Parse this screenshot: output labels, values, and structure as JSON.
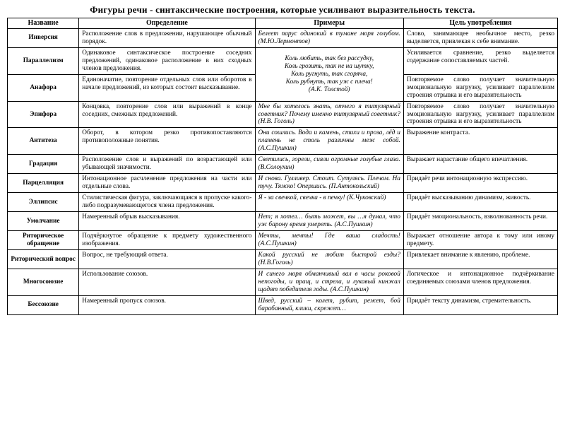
{
  "title": "Фигуры речи - синтаксические построения, которые усиливают выразительность текста.",
  "columns": [
    "Название",
    "Определение",
    "Примеры",
    "Цель употребления"
  ],
  "styling": {
    "page_bg": "#ffffff",
    "text_color": "#000000",
    "border_color": "#000000",
    "title_fontsize_pt": 13,
    "th_fontsize_pt": 10,
    "td_fontsize_pt": 9.3,
    "font_family": "Times New Roman",
    "col_widths_pct": [
      13,
      32,
      27,
      28
    ],
    "example_font_style": "italic",
    "name_font_weight": "bold",
    "rowspans": {
      "1-2": "example"
    }
  },
  "rows": [
    {
      "name": "Инверсия",
      "def": "Расположение слов в предложении, нарушающее обычный порядок.",
      "ex": "Белеет парус одинокий в тумане моря голубом. (М.Ю.Лермонтов)",
      "pur": "Слово, занимающее необычное место, резко выделяется, привлекая к себе внимание."
    },
    {
      "name": "Параллелизм",
      "def": "Одинаковое синтаксическое построение соседних предложений, одинаковое расположение в них сходных членов предложения.",
      "ex": "Коль любить, так без рассудку,\nКоль грозить, так не на шутку,\nКоль ругнуть, так сгоряча,\nКоль рубнуть, так уж с плеча!\n(А.К. Толстой)",
      "pur": "Усиливается сравнение, резко выделяется содержание сопоставляемых частей.",
      "share_example_with_next": true
    },
    {
      "name": "Анафора",
      "def": "Единоначатие, повторение отдельных слов или оборотов в начале предложений, из которых состоит высказывание.",
      "pur": "Повторяемое слово получает значительную эмоциональную нагрузку, усиливает параллелизм строения отрывка и его выразительность"
    },
    {
      "name": "Эпифора",
      "def": "Концовка, повторение слов или выражений в конце соседних, смежных предложений.",
      "ex": "Мне бы хотелось знать, отчего я титулярный советник? Почему именно титулярный советник? (Н.В. Гоголь)",
      "pur": "Повторяемое слово получает значительную эмоциональную нагрузку, усиливает параллелизм строения отрывка и его выразительность"
    },
    {
      "name": "Антитеза",
      "def": "Оборот, в котором резко противопоставляются противоположные понятия.",
      "ex": "Они сошлись. Вода и камень, стихи и проза, лёд и пламень не столь различны меж собой. (А.С.Пушкин)",
      "pur": "Выражение контраста."
    },
    {
      "name": "Градация",
      "def": "Расположение слов и выражений по возрастающей или убывающей значимости.",
      "ex": "Светились, горели, сияли огромные голубые глаза. (В.Солоухин)",
      "pur": "Выражает нарастание общего впечатления."
    },
    {
      "name": "Парцелляция",
      "def": "Интонационное расчленение предложения на части или отдельные слова.",
      "ex": "И снова. Гулливер. Стоит. Сутулясь. Плечом. На тучу. Тяжко! Опершись. (П.Антокольский)",
      "pur": "Придаёт речи интонационную экспрессию."
    },
    {
      "name": "Эллипсис",
      "def": "Стилистическая фигура, заключающаяся в пропуске какого-либо подразумевающегося члена предложения.",
      "ex": "Я - за свечкой, свечка - в печку! (К.Чуковский)",
      "pur": "Придаёт высказыванию динамизм, живость."
    },
    {
      "name": "Умолчание",
      "def": "Намеренный обрыв высказывания.",
      "ex": "Нет; я хотел… быть может, вы …я думал, что уж барону время умереть. (А.С.Пушкин)",
      "pur": "Придаёт эмоциональность, взволнованность речи."
    },
    {
      "name": "Риторическое обращение",
      "def": "Подчёркнутое обращение к предмету художественного изображения.",
      "ex": "Мечты, мечты! Где ваша сладость! (А.С.Пушкин)",
      "pur": "Выражает отношение автора к тому или иному предмету."
    },
    {
      "name": "Риторический вопрос",
      "def": "Вопрос, не требующий ответа.",
      "ex": "Какой русский не любит быстрой езды? (Н.В.Гоголь)",
      "pur": "Привлекает внимание к явлению, проблеме."
    },
    {
      "name": "Многосоюзие",
      "def": "Использование союзов.",
      "ex": "И синего моря обманчивый вал в часы роковой непогоды, и пращ, и стрела, и лукавый кинжал щадят победителя годы. (А.С.Пушкин)",
      "pur": "Логическое и интонационное подчёркивание соединяемых союзами членов предложения."
    },
    {
      "name": "Бессоюзие",
      "def": "Намеренный пропуск союзов.",
      "ex": "Швед, русский – колет, рубит, режет, бой барабанный, клики, скрежет…",
      "pur": "Придаёт тексту динамизм, стремительность."
    }
  ]
}
